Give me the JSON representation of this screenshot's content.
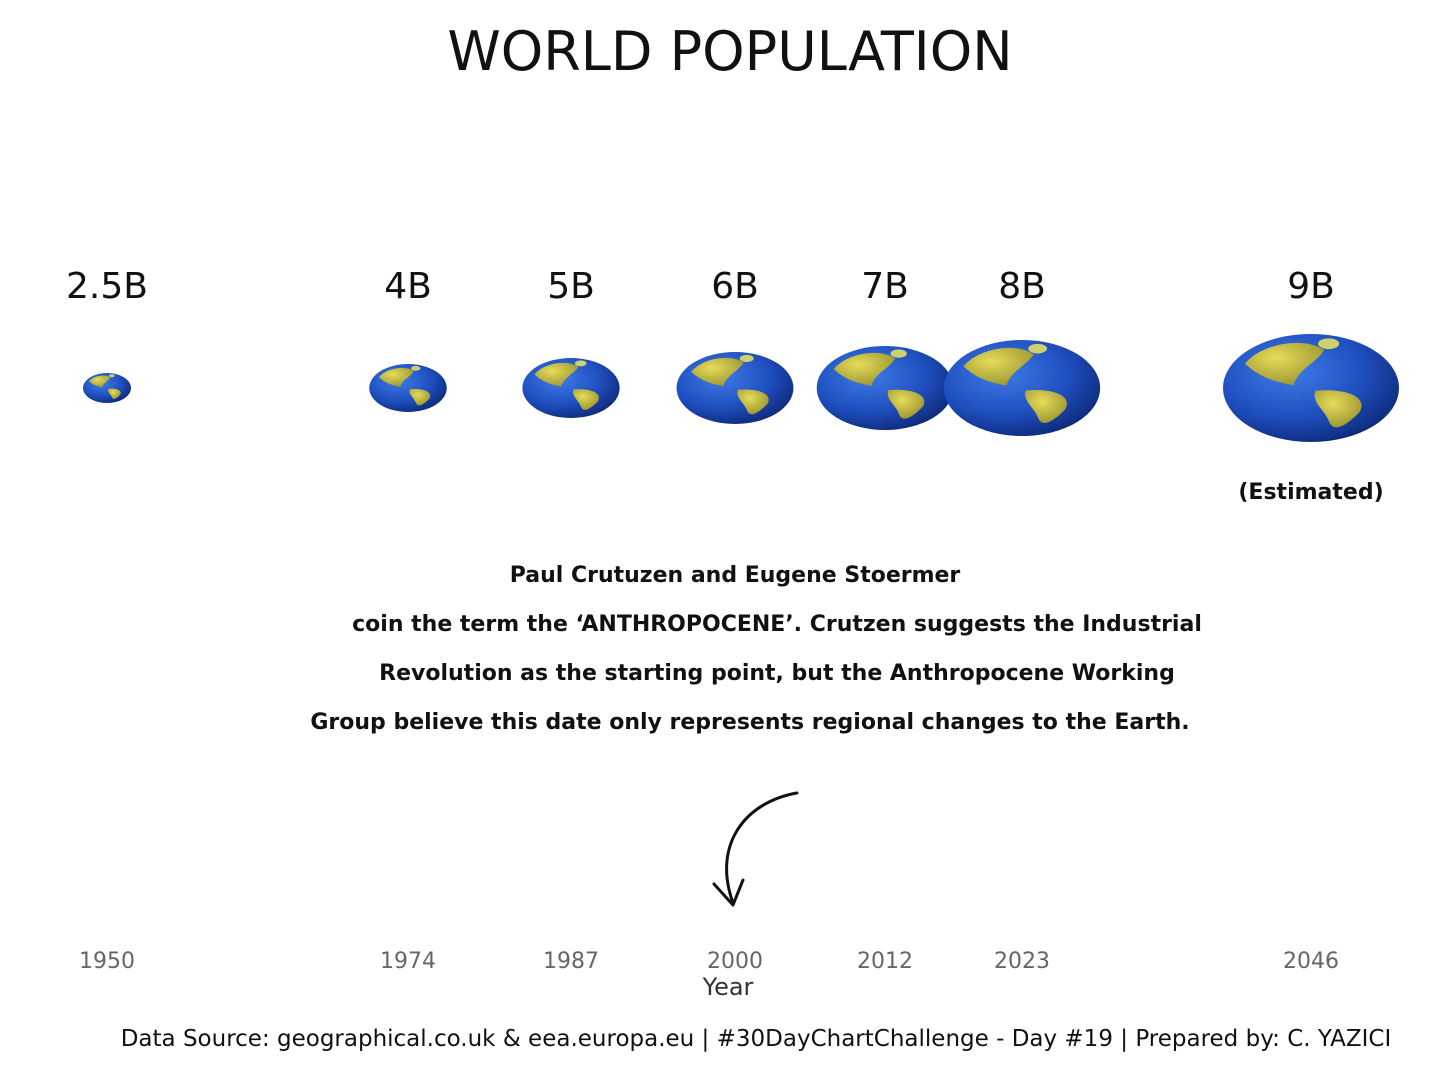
{
  "chart_data": {
    "type": "scatter",
    "title": "WORLD POPULATION",
    "xlabel": "Year",
    "ylabel": "",
    "x": [
      1950,
      1974,
      1987,
      2000,
      2012,
      2023,
      2046
    ],
    "values": [
      2.5,
      4,
      5,
      6,
      7,
      8,
      9
    ],
    "value_labels": [
      "2.5B",
      "4B",
      "5B",
      "6B",
      "7B",
      "8B",
      "9B"
    ],
    "x_tick_labels": [
      "1950",
      "1974",
      "1987",
      "2000",
      "2012",
      "2023",
      "2046"
    ],
    "marker": "globe-icon",
    "grid": false,
    "legend": "none",
    "estimated_note": "(Estimated)",
    "annotation_lines": [
      "Paul Crutuzen and Eugene Stoermer",
      "coin the term the ‘ANTHROPOCENE’. Crutzen suggests the Industrial",
      "Revolution as the starting point, but the Anthropocene Working",
      "Group believe this date only represents regional changes to the Earth."
    ],
    "annotation_year": 2000,
    "caption": "Data Source: geographical.co.uk & eea.europa.eu | #30DayChartChallenge - Day #19 | Prepared by: C. YAZICI"
  },
  "colors": {
    "ocean": "#1f4fbf",
    "ocean_dark": "#0d2a7a",
    "land": "#b8b03a",
    "land_light": "#e6dc5a",
    "tick": "#666666",
    "text": "#111111"
  }
}
